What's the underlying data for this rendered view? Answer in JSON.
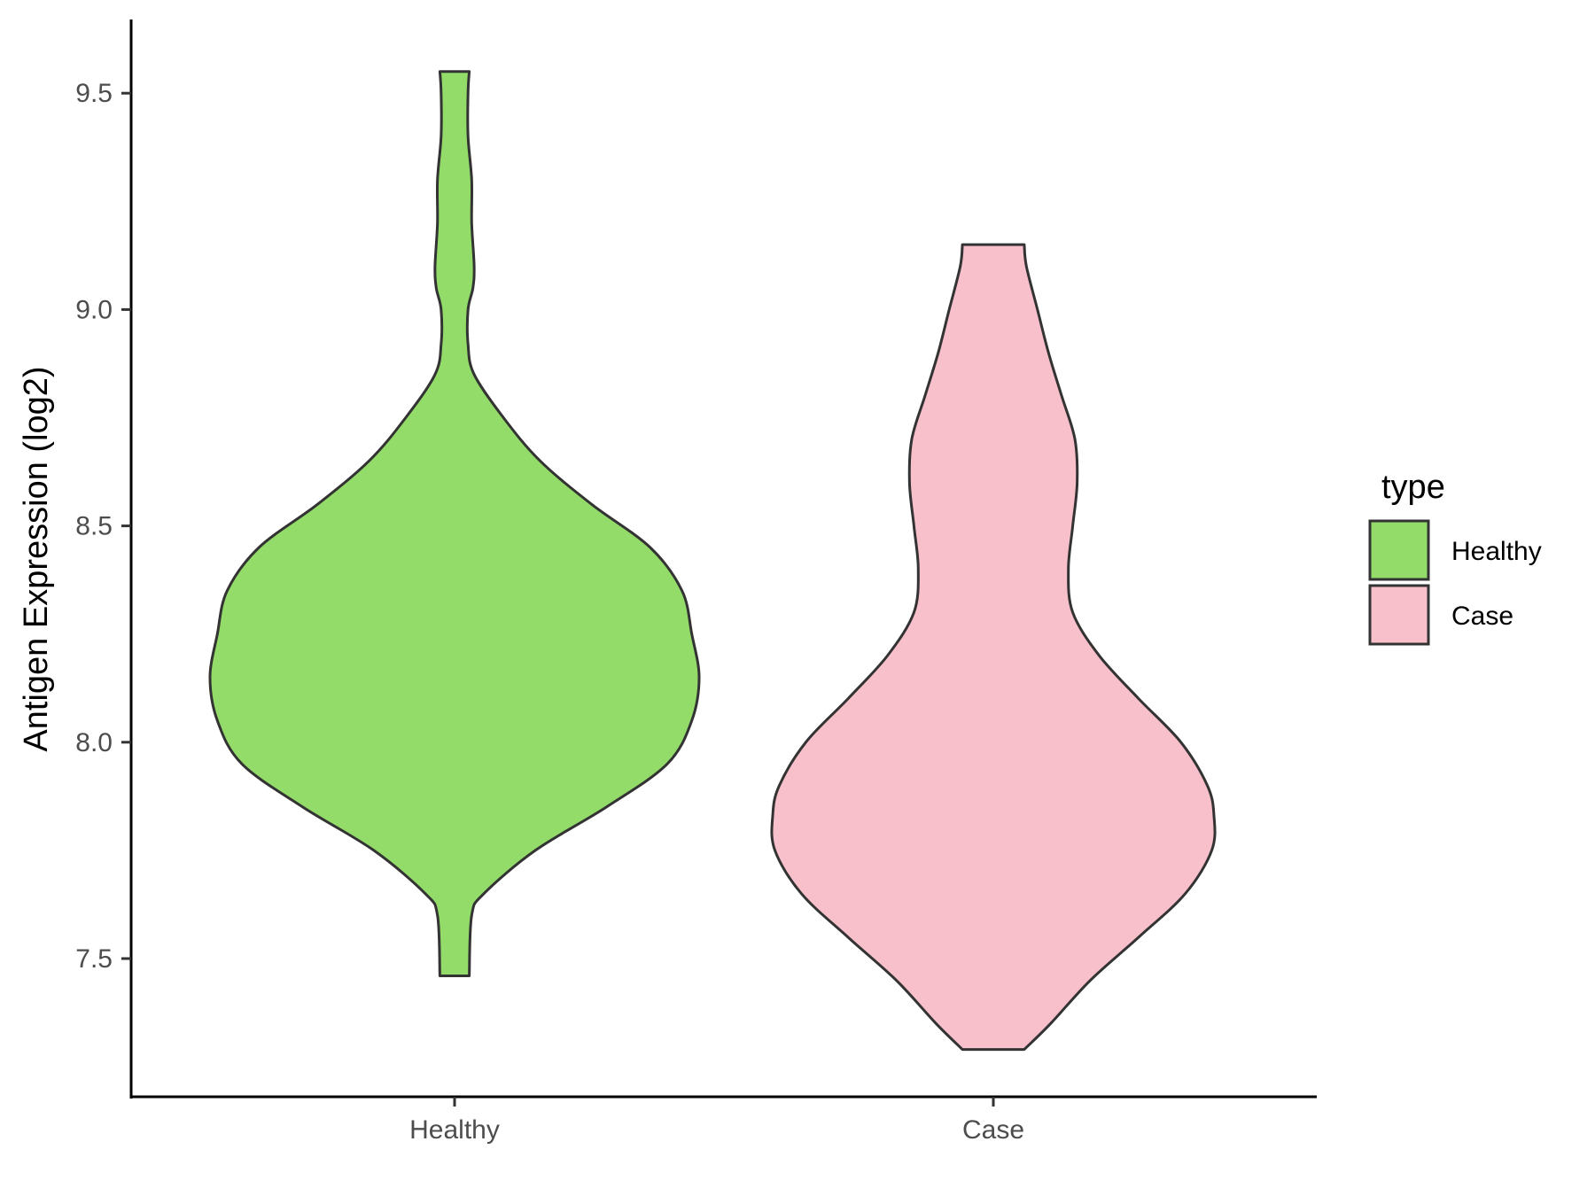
{
  "chart_data": {
    "type": "violin",
    "title": "",
    "xlabel": "",
    "ylabel": "Antigen Expression (log2)",
    "categories": [
      "Healthy",
      "Case"
    ],
    "ylim": [
      7.2,
      9.63
    ],
    "yticks": [
      7.5,
      8.0,
      8.5,
      9.0,
      9.5
    ],
    "ytick_labels": [
      "7.5",
      "8.0",
      "8.5",
      "9.0",
      "9.5"
    ],
    "grid": false,
    "legend": {
      "title": "type",
      "position": "right",
      "entries": [
        {
          "label": "Healthy",
          "color": "#93dc6a"
        },
        {
          "label": "Case",
          "color": "#f7c0cb"
        }
      ]
    },
    "series": [
      {
        "name": "Healthy",
        "color": "#93dc6a",
        "range": [
          7.46,
          9.55
        ],
        "density_profile": [
          [
            7.46,
            0.06
          ],
          [
            7.6,
            0.07
          ],
          [
            7.65,
            0.12
          ],
          [
            7.75,
            0.33
          ],
          [
            7.85,
            0.62
          ],
          [
            7.95,
            0.87
          ],
          [
            8.05,
            0.97
          ],
          [
            8.15,
            1.0
          ],
          [
            8.25,
            0.97
          ],
          [
            8.35,
            0.93
          ],
          [
            8.45,
            0.8
          ],
          [
            8.55,
            0.56
          ],
          [
            8.65,
            0.35
          ],
          [
            8.75,
            0.2
          ],
          [
            8.85,
            0.08
          ],
          [
            8.92,
            0.055
          ],
          [
            9.0,
            0.055
          ],
          [
            9.05,
            0.075
          ],
          [
            9.1,
            0.08
          ],
          [
            9.2,
            0.07
          ],
          [
            9.3,
            0.07
          ],
          [
            9.4,
            0.055
          ],
          [
            9.5,
            0.055
          ],
          [
            9.55,
            0.06
          ]
        ]
      },
      {
        "name": "Case",
        "color": "#f7c0cb",
        "range": [
          7.29,
          9.15
        ],
        "density_profile": [
          [
            7.29,
            0.14
          ],
          [
            7.35,
            0.26
          ],
          [
            7.45,
            0.44
          ],
          [
            7.55,
            0.66
          ],
          [
            7.65,
            0.87
          ],
          [
            7.75,
            0.99
          ],
          [
            7.83,
            1.0
          ],
          [
            7.9,
            0.97
          ],
          [
            8.0,
            0.85
          ],
          [
            8.1,
            0.66
          ],
          [
            8.2,
            0.48
          ],
          [
            8.3,
            0.36
          ],
          [
            8.4,
            0.34
          ],
          [
            8.5,
            0.36
          ],
          [
            8.6,
            0.38
          ],
          [
            8.7,
            0.37
          ],
          [
            8.8,
            0.31
          ],
          [
            8.9,
            0.25
          ],
          [
            9.0,
            0.2
          ],
          [
            9.1,
            0.15
          ],
          [
            9.15,
            0.14
          ]
        ]
      }
    ]
  }
}
